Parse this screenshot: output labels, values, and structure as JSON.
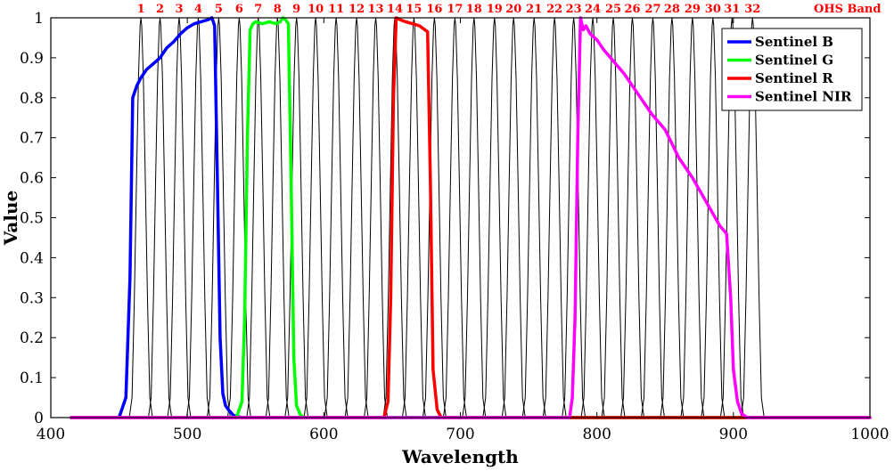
{
  "chart_data": {
    "type": "line",
    "title": "",
    "xlabel": "Wavelength",
    "ylabel": "Value",
    "xlim": [
      400,
      1000
    ],
    "ylim": [
      0,
      1
    ],
    "x_ticks": [
      "400",
      "500",
      "600",
      "700",
      "800",
      "900",
      "1000"
    ],
    "y_ticks": [
      "0",
      "0.1",
      "0.2",
      "0.3",
      "0.4",
      "0.5",
      "0.6",
      "0.7",
      "0.8",
      "0.9",
      "1"
    ],
    "grid": false,
    "legend_position": "top-right",
    "band_axis_label": "OHS Band",
    "band_label_color": "#ff0000",
    "ohs_band_color": "#000000",
    "ohs_bands": [
      {
        "label": "1",
        "center": 466
      },
      {
        "label": "2",
        "center": 480
      },
      {
        "label": "3",
        "center": 494
      },
      {
        "label": "4",
        "center": 508
      },
      {
        "label": "5",
        "center": 523
      },
      {
        "label": "6",
        "center": 538
      },
      {
        "label": "7",
        "center": 552
      },
      {
        "label": "8",
        "center": 566
      },
      {
        "label": "9",
        "center": 580
      },
      {
        "label": "10",
        "center": 594
      },
      {
        "label": "11",
        "center": 609
      },
      {
        "label": "12",
        "center": 624
      },
      {
        "label": "13",
        "center": 638
      },
      {
        "label": "14",
        "center": 652
      },
      {
        "label": "15",
        "center": 666
      },
      {
        "label": "16",
        "center": 681
      },
      {
        "label": "17",
        "center": 696
      },
      {
        "label": "18",
        "center": 710
      },
      {
        "label": "19",
        "center": 725
      },
      {
        "label": "20",
        "center": 739
      },
      {
        "label": "21",
        "center": 754
      },
      {
        "label": "22",
        "center": 769
      },
      {
        "label": "23",
        "center": 783
      },
      {
        "label": "24",
        "center": 797
      },
      {
        "label": "25",
        "center": 812
      },
      {
        "label": "26",
        "center": 826
      },
      {
        "label": "27",
        "center": 841
      },
      {
        "label": "28",
        "center": 855
      },
      {
        "label": "29",
        "center": 870
      },
      {
        "label": "30",
        "center": 885
      },
      {
        "label": "31",
        "center": 899
      },
      {
        "label": "32",
        "center": 914
      }
    ],
    "series": [
      {
        "name": "Sentinel B",
        "color": "#0000ff",
        "x": [
          415,
          450,
          455,
          458,
          460,
          463,
          466,
          470,
          475,
          480,
          485,
          490,
          495,
          500,
          505,
          510,
          515,
          518,
          520,
          522,
          524,
          526,
          528,
          530,
          534,
          540,
          1000
        ],
        "y": [
          0,
          0,
          0.05,
          0.35,
          0.8,
          0.83,
          0.85,
          0.87,
          0.885,
          0.9,
          0.925,
          0.94,
          0.96,
          0.975,
          0.985,
          0.99,
          0.995,
          1.0,
          0.98,
          0.6,
          0.2,
          0.06,
          0.03,
          0.02,
          0.005,
          0,
          0
        ]
      },
      {
        "name": "Sentinel G",
        "color": "#00ff00",
        "x": [
          415,
          536,
          540,
          542,
          544,
          546,
          548,
          550,
          555,
          560,
          565,
          568,
          570,
          572,
          574,
          576,
          578,
          580,
          583,
          586,
          1000
        ],
        "y": [
          0,
          0,
          0.04,
          0.25,
          0.7,
          0.97,
          0.985,
          0.99,
          0.985,
          0.99,
          0.985,
          0.99,
          1.0,
          0.995,
          0.985,
          0.6,
          0.15,
          0.03,
          0.005,
          0,
          0
        ]
      },
      {
        "name": "Sentinel R",
        "color": "#ff0000",
        "x": [
          415,
          644,
          647,
          649,
          651,
          653,
          656,
          660,
          665,
          670,
          674,
          676,
          678,
          680,
          683,
          686,
          1000
        ],
        "y": [
          0,
          0,
          0.04,
          0.3,
          0.8,
          1.0,
          0.995,
          0.99,
          0.985,
          0.98,
          0.97,
          0.965,
          0.6,
          0.12,
          0.02,
          0,
          0
        ]
      },
      {
        "name": "Sentinel NIR",
        "color": "#ff00ff",
        "x": [
          415,
          780,
          782,
          784,
          786,
          788,
          790,
          792,
          795,
          800,
          805,
          810,
          820,
          830,
          840,
          850,
          860,
          870,
          880,
          890,
          895,
          898,
          900,
          903,
          906,
          910,
          1000
        ],
        "y": [
          0,
          0,
          0.05,
          0.25,
          0.7,
          1.0,
          0.97,
          0.98,
          0.96,
          0.945,
          0.92,
          0.9,
          0.86,
          0.81,
          0.76,
          0.72,
          0.65,
          0.6,
          0.54,
          0.48,
          0.46,
          0.3,
          0.12,
          0.04,
          0.01,
          0,
          0
        ]
      }
    ]
  }
}
